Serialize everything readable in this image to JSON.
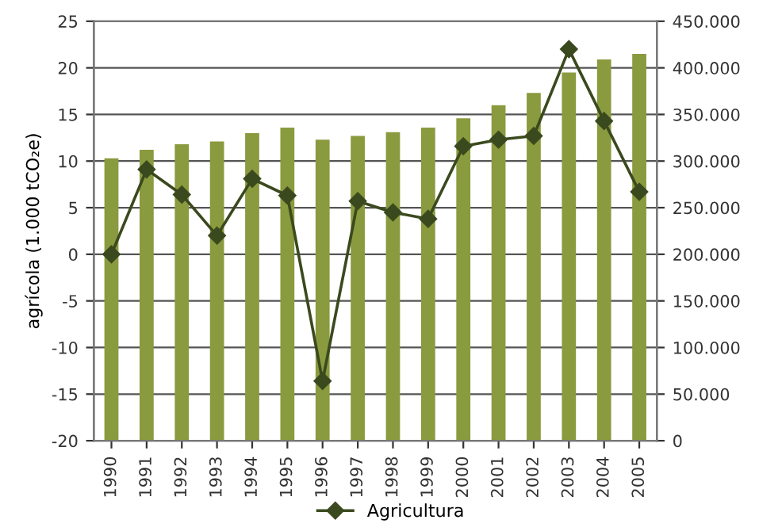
{
  "chart_data": {
    "type": "bar",
    "ylabel": "agrícola (1.000 tCO₂e)",
    "categories": [
      "1990",
      "1991",
      "1992",
      "1993",
      "1994",
      "1995",
      "1996",
      "1997",
      "1998",
      "1999",
      "2000",
      "2001",
      "2002",
      "2003",
      "2004",
      "2005"
    ],
    "series": [
      {
        "axis": "y2",
        "color": "#8a9a3e",
        "values": [
          303000,
          312000,
          318000,
          321000,
          330000,
          336000,
          323000,
          327000,
          331000,
          336000,
          346000,
          360000,
          373000,
          395000,
          409000,
          415000
        ]
      },
      {
        "type": "line",
        "name": "Agricultura",
        "color": "#3b4a1e",
        "marker": "diamond",
        "values": [
          0,
          9.1,
          6.4,
          2.0,
          8.1,
          6.3,
          -13.6,
          5.7,
          4.5,
          3.8,
          11.6,
          12.3,
          12.7,
          22.0,
          14.3,
          6.7
        ]
      }
    ],
    "ylim": [
      -20,
      25
    ],
    "yticks": [
      -20,
      -15,
      -10,
      -5,
      0,
      5,
      10,
      15,
      20,
      25
    ],
    "y2lim": [
      0,
      450000
    ],
    "y2ticks": [
      {
        "value": 0,
        "label": "0"
      },
      {
        "value": 50000,
        "label": "50.000"
      },
      {
        "value": 100000,
        "label": "100.000"
      },
      {
        "value": 150000,
        "label": "150.000"
      },
      {
        "value": 200000,
        "label": "200.000"
      },
      {
        "value": 250000,
        "label": "250.000"
      },
      {
        "value": 300000,
        "label": "300.000"
      },
      {
        "value": 350000,
        "label": "350.000"
      },
      {
        "value": 400000,
        "label": "400.000"
      },
      {
        "value": 450000,
        "label": "450.000"
      }
    ],
    "grid": "y",
    "legend": "bottom"
  }
}
